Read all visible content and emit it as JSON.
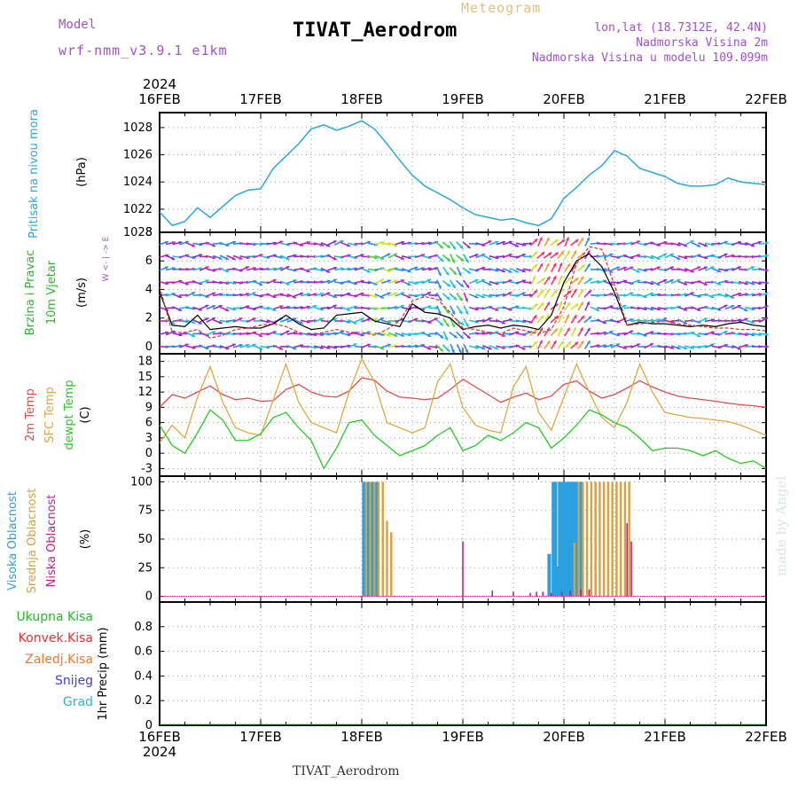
{
  "header": {
    "model_label": "Model",
    "model_name": "wrf-nmm_v3.9.1 e1km",
    "title": "TIVAT_Aerodrom",
    "meteogram_label": "Meteogram",
    "lonlat": "lon,lat (18.7312E, 42.4N)",
    "altitude": "Nadmorska Visina 2m",
    "model_altitude": "Nadmorska Visina u modelu 109.099m"
  },
  "footer": {
    "station": "TIVAT_Aerodrom",
    "credit": "made by Angel"
  },
  "colors": {
    "pressure": "#29a8e0",
    "temp2m": "#e84a4a",
    "sfc": "#e0a840",
    "dewpt": "#22cc22",
    "cloud_high": "#2aa0e0",
    "cloud_mid": "#d8a040",
    "cloud_low": "#c02090",
    "wind_speed": "#000000",
    "wind_gust": "#e03030"
  },
  "chart_data": [
    {
      "type": "line",
      "panel": "pressure",
      "ylabel": "Pritisak na nivou mora",
      "unit": "(hPa)",
      "ylim": [
        1020.3,
        1029.1
      ],
      "yticks": [
        1022,
        1024,
        1026,
        1028
      ],
      "top_tick_label": "1028",
      "x_top_labels": [
        "16FEB",
        "17FEB",
        "18FEB",
        "19FEB",
        "20FEB",
        "21FEB",
        "22FEB"
      ],
      "x_top_year": "2024",
      "grid": true,
      "series": [
        {
          "x": [
            0,
            3,
            6,
            9,
            12,
            15,
            18,
            21,
            24,
            27,
            30,
            33,
            36,
            39,
            42,
            45,
            48,
            51,
            54,
            57,
            60,
            63,
            66,
            69,
            72,
            75,
            78,
            81,
            84,
            87,
            90,
            93,
            96,
            99,
            102,
            105,
            108,
            111,
            114,
            117,
            120,
            123,
            126,
            129,
            132,
            135,
            138,
            141,
            144
          ],
          "values": [
            1021.8,
            1020.8,
            1021.1,
            1022.1,
            1021.4,
            1022.2,
            1023.0,
            1023.4,
            1023.5,
            1025.0,
            1025.9,
            1026.8,
            1027.9,
            1028.2,
            1027.8,
            1028.1,
            1028.5,
            1027.9,
            1026.8,
            1025.6,
            1024.5,
            1023.7,
            1023.2,
            1022.7,
            1022.1,
            1021.6,
            1021.4,
            1021.2,
            1021.3,
            1021.0,
            1020.8,
            1021.3,
            1022.8,
            1023.6,
            1024.5,
            1025.2,
            1026.3,
            1025.9,
            1025.0,
            1024.7,
            1024.4,
            1023.9,
            1023.7,
            1023.7,
            1023.8,
            1024.3,
            1024.0,
            1023.9,
            1023.8
          ]
        }
      ]
    },
    {
      "type": "line",
      "panel": "wind",
      "ylabel": "10m Vjetar Brzina i Pravac",
      "unit": "(m/s)",
      "compass": "W <- | -> E, S ^ N",
      "ylim": [
        -0.5,
        8.0
      ],
      "yticks": [
        0,
        2,
        4,
        6,
        8
      ],
      "grid": true,
      "series": [
        {
          "name": "speed",
          "x": [
            0,
            3,
            6,
            9,
            12,
            15,
            18,
            21,
            24,
            27,
            30,
            33,
            36,
            39,
            42,
            45,
            48,
            51,
            54,
            57,
            60,
            63,
            66,
            69,
            72,
            75,
            78,
            81,
            84,
            87,
            90,
            93,
            96,
            99,
            102,
            105,
            108,
            111,
            114,
            117,
            120,
            123,
            126,
            129,
            132,
            135,
            138,
            141,
            144
          ],
          "values": [
            3.8,
            1.5,
            1.4,
            2.2,
            1.2,
            1.3,
            1.4,
            1.3,
            1.3,
            1.6,
            2.2,
            1.6,
            1.2,
            1.3,
            2.2,
            2.3,
            2.4,
            1.8,
            1.6,
            1.4,
            3.0,
            2.4,
            2.3,
            2.0,
            1.2,
            1.4,
            1.5,
            1.3,
            1.5,
            1.4,
            1.2,
            2.2,
            4.5,
            6.0,
            6.5,
            5.6,
            3.8,
            1.5,
            1.7,
            1.6,
            1.6,
            1.5,
            1.4,
            1.5,
            1.4,
            1.6,
            1.7,
            1.5,
            1.4
          ]
        },
        {
          "name": "gust",
          "x": [
            0,
            3,
            6,
            9,
            12,
            15,
            18,
            21,
            24,
            27,
            30,
            33,
            36,
            39,
            42,
            45,
            48,
            51,
            54,
            57,
            60,
            63,
            66,
            69,
            72,
            75,
            78,
            81,
            84,
            87,
            90,
            93,
            96,
            99,
            102,
            105,
            108,
            111,
            114,
            117,
            120,
            123,
            126,
            129,
            132,
            135,
            138,
            141,
            144
          ],
          "values": [
            4.2,
            1.0,
            1.0,
            1.2,
            0.6,
            0.8,
            1.2,
            1.3,
            1.5,
            1.6,
            1.4,
            1.0,
            0.8,
            1.0,
            1.2,
            1.0,
            1.0,
            0.8,
            1.2,
            1.8,
            3.2,
            3.5,
            3.3,
            2.4,
            1.3,
            1.2,
            1.0,
            0.9,
            1.3,
            1.1,
            0.9,
            1.2,
            2.8,
            5.8,
            7.0,
            6.8,
            4.3,
            1.5,
            1.6,
            1.7,
            1.8,
            1.6,
            1.5,
            1.4,
            1.3,
            1.3,
            1.2,
            1.2,
            1.1
          ]
        }
      ]
    },
    {
      "type": "line",
      "panel": "temperature",
      "ylabel": [
        "2m Temp",
        "SFC Temp",
        "dewpt Temp"
      ],
      "unit": "(C)",
      "ylim": [
        -4.5,
        19.5
      ],
      "yticks": [
        -3,
        0,
        3,
        6,
        9,
        12,
        15,
        18
      ],
      "grid": true,
      "series": [
        {
          "name": "2m Temp",
          "x": [
            0,
            3,
            6,
            9,
            12,
            15,
            18,
            21,
            24,
            27,
            30,
            33,
            36,
            39,
            42,
            45,
            48,
            51,
            54,
            57,
            60,
            63,
            66,
            69,
            72,
            75,
            78,
            81,
            84,
            87,
            90,
            93,
            96,
            99,
            102,
            105,
            108,
            111,
            114,
            117,
            120,
            123,
            126,
            129,
            132,
            135,
            138,
            141,
            144
          ],
          "values": [
            9.0,
            11.5,
            10.8,
            12.0,
            13.2,
            11.5,
            10.5,
            10.8,
            10.2,
            10.3,
            12.5,
            13.5,
            12.0,
            11.2,
            11.0,
            12.2,
            14.8,
            14.3,
            12.2,
            11.0,
            10.8,
            10.5,
            10.8,
            12.5,
            14.5,
            13.0,
            11.5,
            10.0,
            11.0,
            11.8,
            10.5,
            11.2,
            13.5,
            14.2,
            12.2,
            10.8,
            11.5,
            12.8,
            14.2,
            13.0,
            12.0,
            11.2,
            10.8,
            10.5,
            10.2,
            9.8,
            9.5,
            9.3,
            9.0
          ]
        },
        {
          "name": "SFC Temp",
          "x": [
            0,
            3,
            6,
            9,
            12,
            15,
            18,
            21,
            24,
            27,
            30,
            33,
            36,
            39,
            42,
            45,
            48,
            51,
            54,
            57,
            60,
            63,
            66,
            69,
            72,
            75,
            78,
            81,
            84,
            87,
            90,
            93,
            96,
            99,
            102,
            105,
            108,
            111,
            114,
            117,
            120,
            123,
            126,
            129,
            132,
            135,
            138,
            141,
            144
          ],
          "values": [
            2.0,
            5.5,
            3.0,
            11.0,
            17.0,
            10.0,
            5.0,
            4.0,
            3.5,
            10.5,
            17.5,
            10.0,
            6.0,
            5.0,
            4.0,
            12.0,
            18.5,
            14.0,
            6.0,
            5.0,
            4.0,
            5.0,
            14.0,
            17.5,
            9.0,
            5.5,
            4.5,
            4.0,
            13.0,
            17.0,
            8.0,
            4.5,
            11.0,
            17.5,
            12.0,
            7.0,
            5.0,
            10.0,
            17.5,
            12.0,
            8.0,
            7.5,
            7.0,
            6.8,
            6.5,
            6.2,
            5.5,
            4.5,
            3.5
          ]
        },
        {
          "name": "dewpt Temp",
          "x": [
            0,
            3,
            6,
            9,
            12,
            15,
            18,
            21,
            24,
            27,
            30,
            33,
            36,
            39,
            42,
            45,
            48,
            51,
            54,
            57,
            60,
            63,
            66,
            69,
            72,
            75,
            78,
            81,
            84,
            87,
            90,
            93,
            96,
            99,
            102,
            105,
            108,
            111,
            114,
            117,
            120,
            123,
            126,
            129,
            132,
            135,
            138,
            141,
            144
          ],
          "values": [
            5.5,
            1.5,
            0.0,
            4.0,
            8.5,
            6.5,
            2.5,
            2.5,
            3.8,
            7.0,
            8.0,
            5.0,
            2.5,
            -3.0,
            1.0,
            6.0,
            6.5,
            3.5,
            1.5,
            -0.5,
            0.5,
            1.5,
            3.5,
            5.0,
            0.5,
            1.5,
            3.5,
            2.5,
            4.0,
            6.0,
            5.0,
            1.0,
            3.0,
            5.5,
            8.5,
            7.5,
            6.0,
            5.0,
            3.0,
            0.5,
            1.0,
            1.0,
            0.5,
            -0.5,
            0.5,
            -1.0,
            -2.0,
            -1.5,
            -3.0
          ]
        }
      ]
    },
    {
      "type": "bar",
      "panel": "clouds",
      "ylabel": [
        "Visoka Oblacnost",
        "Srednja Oblacnost",
        "Niska Oblacnost"
      ],
      "unit": "(%)",
      "ylim": [
        -5,
        105
      ],
      "yticks": [
        0,
        25,
        50,
        75,
        100
      ],
      "grid": true,
      "series": [
        {
          "name": "Visoka Oblacnost",
          "x": [
            48.5,
            49.5,
            50.5,
            51.5,
            92.5,
            93.5,
            94.0,
            94.5,
            95.0,
            95.5,
            96.0,
            96.5,
            97.0,
            97.5,
            98.0,
            98.5,
            99.0,
            100.0
          ],
          "values": [
            100,
            100,
            100,
            100,
            37,
            100,
            100,
            26,
            100,
            100,
            100,
            100,
            100,
            100,
            100,
            100,
            100,
            100
          ]
        },
        {
          "name": "Srednja Oblacnost",
          "x": [
            49.0,
            50.0,
            51.0,
            52.0,
            53.0,
            54.0,
            55.0,
            98.5,
            99.5,
            100.5,
            101.5,
            102.5,
            103.5,
            104.5,
            105.5,
            106.5,
            107.5,
            108.5,
            109.5,
            110.5,
            111.5
          ],
          "values": [
            100,
            100,
            100,
            100,
            100,
            66,
            56,
            47,
            100,
            100,
            100,
            100,
            100,
            100,
            100,
            100,
            100,
            100,
            100,
            100,
            100
          ]
        },
        {
          "name": "Niska Oblacnost",
          "x": [
            72.0,
            79.0,
            84.0,
            88.0,
            89.5,
            91.0,
            93.0,
            95.5,
            97.5,
            100.0,
            102.0,
            111.0,
            112.0
          ],
          "values": [
            48,
            5,
            4,
            3,
            4,
            4,
            3,
            4,
            5,
            6,
            6,
            64,
            48
          ]
        }
      ]
    },
    {
      "type": "line",
      "panel": "precipitation",
      "ylabel": "1hr Precip (mm)",
      "legend": [
        "Ukupna Kisa",
        "Konvek.Kisa",
        "Zaledj.Kisa",
        "Snijeg",
        "Grad"
      ],
      "legend_colors": [
        "#22bb22",
        "#e83030",
        "#f07828",
        "#4040e0",
        "#20c0c0"
      ],
      "ylim": [
        0,
        1.0
      ],
      "yticks": [
        0,
        0.2,
        0.4,
        0.6,
        0.8
      ],
      "ytick_labels": [
        "0",
        "0.2",
        "0.4",
        "0.6",
        "0.8"
      ],
      "x_bottom_labels": [
        "16FEB",
        "17FEB",
        "18FEB",
        "19FEB",
        "20FEB",
        "21FEB",
        "22FEB"
      ],
      "x_bottom_year": "2024",
      "grid": true,
      "series": []
    }
  ]
}
